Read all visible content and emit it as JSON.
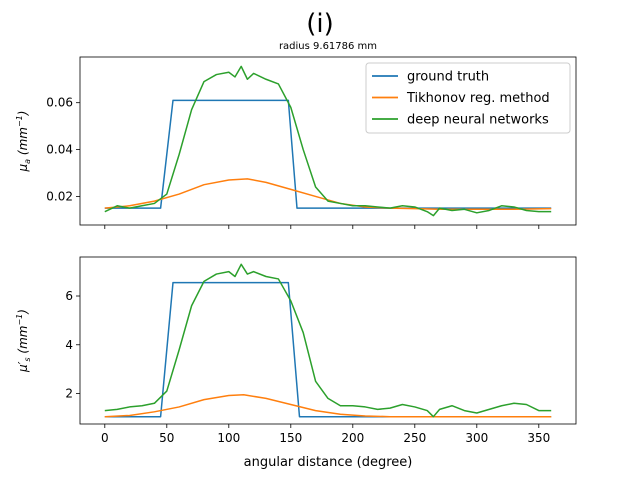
{
  "figure": {
    "title": "(i)",
    "subtitle": "radius 9.61786 mm",
    "xlabel": "angular distance (degree)"
  },
  "colors": {
    "ground_truth": "#1f77b4",
    "tikhonov": "#ff7f0e",
    "dnn": "#2ca02c"
  },
  "legend": {
    "placement": "upper right (top panel)",
    "entries": [
      "ground truth",
      "Tikhonov reg. method",
      "deep neural networks"
    ]
  },
  "chart_data": [
    {
      "type": "line",
      "title": "(i)",
      "subtitle": "radius 9.61786 mm",
      "panel": "top",
      "ylabel_main": "μ",
      "ylabel_sub": "a",
      "ylabel_unit": "(mm",
      "ylabel_exp": "−1",
      "ylabel_close": ")",
      "xlim": [
        -20,
        380
      ],
      "ylim": [
        0.0078,
        0.0795
      ],
      "xticks": [
        0,
        50,
        100,
        150,
        200,
        250,
        300,
        350
      ],
      "yticks": [
        0.02,
        0.04,
        0.06
      ],
      "ytick_labels": [
        "0.02",
        "0.04",
        "0.06"
      ],
      "grid": false,
      "series": [
        {
          "name": "ground truth",
          "x": [
            0,
            45,
            55,
            148,
            155,
            360
          ],
          "y": [
            0.015,
            0.015,
            0.061,
            0.061,
            0.015,
            0.015
          ]
        },
        {
          "name": "Tikhonov reg. method",
          "x": [
            0,
            20,
            40,
            60,
            80,
            100,
            115,
            130,
            150,
            170,
            190,
            210,
            230,
            250,
            270,
            300,
            330,
            360
          ],
          "y": [
            0.015,
            0.016,
            0.018,
            0.021,
            0.025,
            0.027,
            0.0275,
            0.026,
            0.023,
            0.02,
            0.017,
            0.0155,
            0.015,
            0.0148,
            0.0145,
            0.0145,
            0.0145,
            0.0148
          ]
        },
        {
          "name": "deep neural networks",
          "x": [
            0,
            10,
            20,
            30,
            40,
            50,
            60,
            70,
            80,
            90,
            100,
            105,
            110,
            115,
            120,
            130,
            140,
            150,
            160,
            170,
            180,
            190,
            200,
            210,
            220,
            230,
            240,
            250,
            260,
            265,
            270,
            280,
            290,
            300,
            310,
            320,
            330,
            340,
            350,
            360
          ],
          "y": [
            0.0135,
            0.016,
            0.015,
            0.016,
            0.017,
            0.021,
            0.038,
            0.057,
            0.069,
            0.072,
            0.073,
            0.071,
            0.0755,
            0.07,
            0.0725,
            0.07,
            0.068,
            0.058,
            0.04,
            0.024,
            0.018,
            0.017,
            0.016,
            0.016,
            0.0155,
            0.015,
            0.016,
            0.0155,
            0.0135,
            0.0118,
            0.015,
            0.014,
            0.0145,
            0.013,
            0.014,
            0.016,
            0.0155,
            0.014,
            0.0135,
            0.0135
          ]
        }
      ]
    },
    {
      "type": "line",
      "panel": "bottom",
      "ylabel_main": "μ′",
      "ylabel_sub": "s",
      "ylabel_unit": "(mm",
      "ylabel_exp": "−1",
      "ylabel_close": ")",
      "xlabel": "angular distance (degree)",
      "xlim": [
        -20,
        380
      ],
      "ylim": [
        0.75,
        7.6
      ],
      "xticks": [
        0,
        50,
        100,
        150,
        200,
        250,
        300,
        350
      ],
      "xtick_labels": [
        "0",
        "50",
        "100",
        "150",
        "200",
        "250",
        "300",
        "350"
      ],
      "yticks": [
        2,
        4,
        6
      ],
      "ytick_labels": [
        "2",
        "4",
        "6"
      ],
      "grid": false,
      "series": [
        {
          "name": "ground truth",
          "x": [
            0,
            45,
            55,
            148,
            157,
            360
          ],
          "y": [
            1.05,
            1.05,
            6.55,
            6.55,
            1.05,
            1.05
          ]
        },
        {
          "name": "Tikhonov reg. method",
          "x": [
            0,
            20,
            40,
            60,
            80,
            100,
            112,
            130,
            150,
            170,
            190,
            210,
            230,
            250,
            270,
            300,
            330,
            360
          ],
          "y": [
            1.05,
            1.1,
            1.25,
            1.45,
            1.75,
            1.92,
            1.95,
            1.8,
            1.55,
            1.3,
            1.15,
            1.08,
            1.05,
            1.05,
            1.05,
            1.05,
            1.05,
            1.05
          ]
        },
        {
          "name": "deep neural networks",
          "x": [
            0,
            10,
            20,
            30,
            40,
            50,
            60,
            70,
            80,
            90,
            100,
            105,
            110,
            115,
            120,
            130,
            140,
            150,
            160,
            170,
            180,
            190,
            200,
            210,
            220,
            230,
            240,
            250,
            260,
            265,
            270,
            280,
            290,
            300,
            310,
            320,
            330,
            340,
            350,
            360
          ],
          "y": [
            1.3,
            1.35,
            1.45,
            1.5,
            1.6,
            2.1,
            3.8,
            5.6,
            6.6,
            6.9,
            7.0,
            6.8,
            7.3,
            6.9,
            7.0,
            6.8,
            6.7,
            5.8,
            4.5,
            2.5,
            1.8,
            1.5,
            1.5,
            1.45,
            1.35,
            1.4,
            1.55,
            1.45,
            1.3,
            1.05,
            1.35,
            1.5,
            1.3,
            1.2,
            1.35,
            1.5,
            1.6,
            1.55,
            1.3,
            1.3
          ]
        }
      ]
    }
  ]
}
